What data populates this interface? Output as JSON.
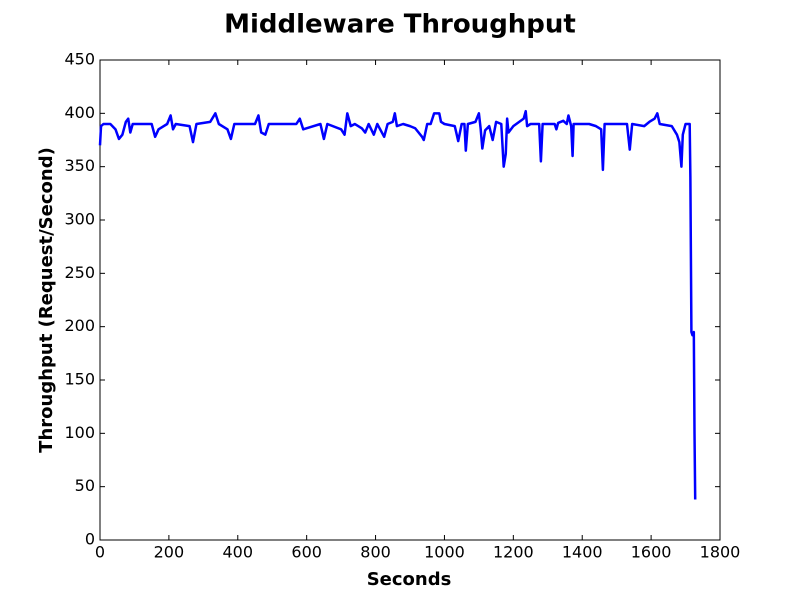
{
  "chart_data": {
    "type": "line",
    "title": "Middleware Throughput",
    "x_label": "Seconds",
    "y_label": "Throughput (Request/Second)",
    "color": "#0000ff",
    "x": [
      0,
      3,
      10,
      30,
      45,
      55,
      65,
      75,
      82,
      88,
      95,
      150,
      160,
      170,
      195,
      205,
      212,
      220,
      260,
      270,
      280,
      320,
      335,
      345,
      370,
      380,
      390,
      450,
      460,
      468,
      480,
      490,
      570,
      580,
      590,
      640,
      650,
      660,
      700,
      710,
      718,
      728,
      740,
      760,
      770,
      780,
      795,
      805,
      825,
      835,
      850,
      856,
      862,
      880,
      900,
      915,
      935,
      940,
      950,
      960,
      970,
      985,
      990,
      1000,
      1030,
      1040,
      1050,
      1058,
      1062,
      1068,
      1090,
      1100,
      1105,
      1110,
      1118,
      1130,
      1140,
      1150,
      1165,
      1172,
      1178,
      1182,
      1186,
      1200,
      1230,
      1236,
      1240,
      1250,
      1275,
      1280,
      1285,
      1320,
      1325,
      1330,
      1345,
      1355,
      1360,
      1368,
      1372,
      1375,
      1420,
      1440,
      1455,
      1460,
      1465,
      1530,
      1538,
      1545,
      1580,
      1595,
      1610,
      1618,
      1625,
      1660,
      1675,
      1682,
      1688,
      1692,
      1700,
      1712,
      1714,
      1717,
      1720,
      1724,
      1726,
      1728
    ],
    "values": [
      370,
      388,
      390,
      390,
      385,
      376,
      380,
      392,
      395,
      382,
      390,
      390,
      378,
      385,
      390,
      398,
      385,
      390,
      388,
      373,
      390,
      392,
      400,
      390,
      385,
      376,
      390,
      390,
      398,
      382,
      380,
      390,
      390,
      395,
      385,
      390,
      376,
      390,
      385,
      380,
      400,
      388,
      390,
      386,
      382,
      390,
      380,
      390,
      378,
      390,
      392,
      400,
      388,
      390,
      388,
      386,
      378,
      375,
      390,
      390,
      400,
      400,
      392,
      390,
      388,
      374,
      390,
      390,
      365,
      390,
      392,
      400,
      386,
      367,
      384,
      388,
      375,
      392,
      390,
      350,
      362,
      395,
      382,
      388,
      395,
      402,
      388,
      390,
      390,
      355,
      390,
      390,
      385,
      391,
      393,
      390,
      398,
      388,
      360,
      390,
      390,
      388,
      385,
      347,
      390,
      390,
      366,
      390,
      388,
      392,
      395,
      400,
      390,
      388,
      380,
      373,
      350,
      380,
      390,
      390,
      340,
      195,
      192,
      195,
      100,
      38
    ],
    "xlim": [
      0,
      1800
    ],
    "xticks": [
      0,
      200,
      400,
      600,
      800,
      1000,
      1200,
      1400,
      1600,
      1800
    ],
    "ylim": [
      0,
      450
    ],
    "yticks": [
      0,
      50,
      100,
      150,
      200,
      250,
      300,
      350,
      400,
      450
    ]
  }
}
